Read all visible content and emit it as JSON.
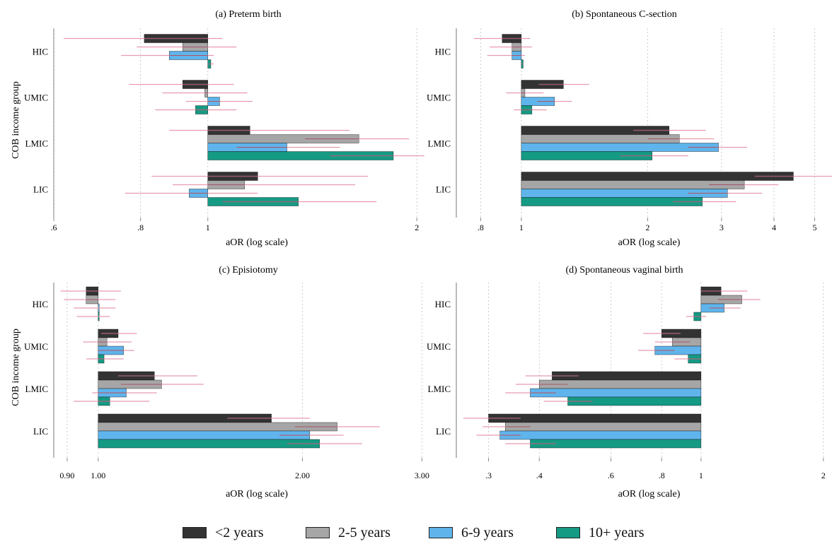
{
  "series": [
    {
      "name": "<2 years",
      "color": "#333333"
    },
    {
      "name": "2-5 years",
      "color": "#a6a6a6"
    },
    {
      "name": "6-9 years",
      "color": "#5fb4ec"
    },
    {
      "name": "10+ years",
      "color": "#159a84"
    }
  ],
  "ci_color": "#e89ab0",
  "ci_dark_color": "#7a3a4a",
  "chart_data": [
    {
      "type": "bar",
      "title": "(a) Preterm birth",
      "xlabel": "aOR (log scale)",
      "ylabel": "COB income group",
      "xscale": "log",
      "xlim": [
        0.6,
        2.1
      ],
      "ticks": [
        0.6,
        0.8,
        1,
        2
      ],
      "tick_labels": [
        ".6",
        ".8",
        "1",
        "2"
      ],
      "categories": [
        "HIC",
        "UMIC",
        "LMIC",
        "LIC"
      ],
      "values": [
        [
          0.81,
          0.92,
          0.88,
          1.01
        ],
        [
          0.92,
          0.99,
          1.04,
          0.96
        ],
        [
          1.15,
          1.65,
          1.3,
          1.85
        ],
        [
          1.18,
          1.13,
          0.94,
          1.35
        ]
      ],
      "ci": [
        [
          [
            0.62,
            1.05
          ],
          [
            0.79,
            1.1
          ],
          [
            0.75,
            1.02
          ],
          [
            1.0,
            1.02
          ]
        ],
        [
          [
            0.77,
            1.09
          ],
          [
            0.86,
            1.14
          ],
          [
            0.93,
            1.16
          ],
          [
            0.84,
            1.1
          ]
        ],
        [
          [
            0.88,
            1.6
          ],
          [
            1.38,
            1.95
          ],
          [
            1.1,
            1.55
          ],
          [
            1.5,
            2.05
          ]
        ],
        [
          [
            0.83,
            1.7
          ],
          [
            0.89,
            1.63
          ],
          [
            0.76,
            1.18
          ],
          [
            1.05,
            1.75
          ]
        ]
      ]
    },
    {
      "type": "bar",
      "title": "(b) Spontaneous C-section",
      "xlabel": "aOR (log scale)",
      "ylabel": "",
      "xscale": "log",
      "xlim": [
        0.7,
        5.5
      ],
      "ticks": [
        0.8,
        1,
        2,
        3,
        4,
        5
      ],
      "tick_labels": [
        ".8",
        "1",
        "2",
        "3",
        "4",
        "5"
      ],
      "categories": [
        "HIC",
        "UMIC",
        "LMIC",
        "LIC"
      ],
      "values": [
        [
          0.9,
          0.95,
          0.95,
          1.01
        ],
        [
          1.26,
          1.02,
          1.2,
          1.06
        ],
        [
          2.25,
          2.38,
          2.95,
          2.05
        ],
        [
          4.45,
          3.4,
          3.1,
          2.7
        ]
      ],
      "ci": [
        [
          [
            0.77,
            1.05
          ],
          [
            0.84,
            1.06
          ],
          [
            0.83,
            1.02
          ],
          [
            1.0,
            1.01
          ]
        ],
        [
          [
            1.1,
            1.45
          ],
          [
            0.92,
            1.13
          ],
          [
            1.09,
            1.32
          ],
          [
            0.96,
            1.15
          ]
        ],
        [
          [
            1.85,
            2.75
          ],
          [
            2.0,
            2.88
          ],
          [
            2.5,
            3.45
          ],
          [
            1.72,
            2.5
          ]
        ],
        [
          [
            3.6,
            5.6
          ],
          [
            2.8,
            4.1
          ],
          [
            2.5,
            3.75
          ],
          [
            2.3,
            3.25
          ]
        ]
      ]
    },
    {
      "type": "bar",
      "title": "(c) Episiotomy",
      "xlabel": "aOR (log scale)",
      "ylabel": "COB income group",
      "xscale": "log",
      "xlim": [
        0.86,
        3.1
      ],
      "ticks": [
        0.9,
        1.0,
        2.0,
        3.0
      ],
      "tick_labels": [
        "0.90",
        "1.00",
        "2.00",
        "3.00"
      ],
      "categories": [
        "HIC",
        "UMIC",
        "LMIC",
        "LIC"
      ],
      "values": [
        [
          0.96,
          0.96,
          1.0,
          1.0
        ],
        [
          1.07,
          1.03,
          1.09,
          1.02
        ],
        [
          1.21,
          1.24,
          1.1,
          1.04
        ],
        [
          1.8,
          2.25,
          2.05,
          2.12
        ]
      ],
      "ci": [
        [
          [
            0.88,
            1.08
          ],
          [
            0.89,
            1.06
          ],
          [
            0.92,
            1.06
          ],
          [
            0.93,
            1.04
          ]
        ],
        [
          [
            1.01,
            1.14
          ],
          [
            0.95,
            1.12
          ],
          [
            1.0,
            1.13
          ],
          [
            0.96,
            1.09
          ]
        ],
        [
          [
            1.07,
            1.4
          ],
          [
            1.08,
            1.43
          ],
          [
            0.98,
            1.22
          ],
          [
            0.92,
            1.19
          ]
        ],
        [
          [
            1.55,
            2.05
          ],
          [
            1.95,
            2.6
          ],
          [
            1.85,
            2.3
          ],
          [
            1.9,
            2.45
          ]
        ]
      ]
    },
    {
      "type": "bar",
      "title": "(d) Spontaneous vaginal birth",
      "xlabel": "aOR (log scale)",
      "ylabel": "",
      "xscale": "log",
      "xlim": [
        0.25,
        2.1
      ],
      "ticks": [
        0.3,
        0.4,
        0.6,
        0.8,
        1,
        2
      ],
      "tick_labels": [
        ".3",
        ".4",
        ".6",
        ".8",
        "1",
        "2"
      ],
      "categories": [
        "HIC",
        "UMIC",
        "LMIC",
        "LIC"
      ],
      "values": [
        [
          1.12,
          1.26,
          1.14,
          0.96
        ],
        [
          0.8,
          0.85,
          0.77,
          0.93
        ],
        [
          0.43,
          0.4,
          0.38,
          0.47
        ],
        [
          0.3,
          0.33,
          0.32,
          0.38
        ]
      ],
      "ci": [
        [
          [
            1.0,
            1.3
          ],
          [
            1.1,
            1.4
          ],
          [
            1.05,
            1.25
          ],
          [
            0.92,
            1.03
          ]
        ],
        [
          [
            0.72,
            0.89
          ],
          [
            0.77,
            0.94
          ],
          [
            0.7,
            0.86
          ],
          [
            0.86,
            1.0
          ]
        ],
        [
          [
            0.37,
            0.5
          ],
          [
            0.35,
            0.47
          ],
          [
            0.33,
            0.44
          ],
          [
            0.41,
            0.54
          ]
        ],
        [
          [
            0.26,
            0.36
          ],
          [
            0.29,
            0.38
          ],
          [
            0.28,
            0.36
          ],
          [
            0.33,
            0.44
          ]
        ]
      ]
    }
  ]
}
